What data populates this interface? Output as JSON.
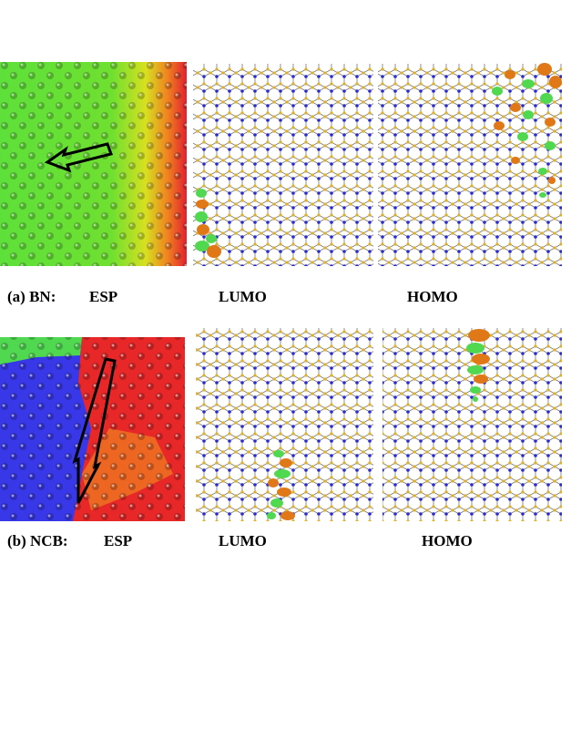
{
  "panels": [
    {
      "label": "(a) BN:",
      "views": [
        "ESP",
        "LUMO",
        "HOMO"
      ]
    },
    {
      "label": "(b) NCB:",
      "views": [
        "ESP",
        "LUMO",
        "HOMO"
      ]
    }
  ]
}
